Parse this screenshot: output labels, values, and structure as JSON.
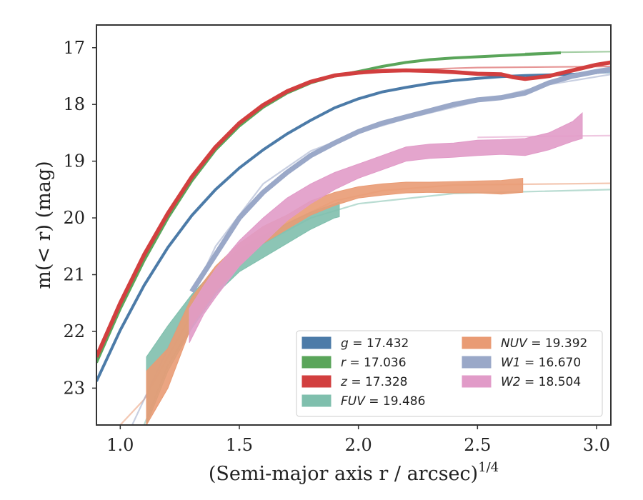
{
  "chart_data": {
    "type": "line",
    "xlabel": "(Semi-major axis r / arcsec)",
    "xlabel_sup": "1/4",
    "ylabel": "m(< r) (mag)",
    "xlim": [
      0.9,
      3.06
    ],
    "ylim": [
      23.65,
      16.6
    ],
    "y_inverted": true,
    "grid": false,
    "legend_placement": "bottom-right",
    "x_ticks": [
      "1.0",
      "1.5",
      "2.0",
      "2.5",
      "3.0"
    ],
    "x_tick_values": [
      1.0,
      1.5,
      2.0,
      2.5,
      3.0
    ],
    "y_ticks": [
      "17",
      "18",
      "19",
      "20",
      "21",
      "22",
      "23"
    ],
    "y_tick_values": [
      17,
      18,
      19,
      20,
      21,
      22,
      23
    ],
    "series": [
      {
        "id": "g",
        "name": "g = 17.432",
        "legend_col": 0,
        "legend_row": 0,
        "color": "#4c7ba8",
        "band_width": 0.05,
        "data": [
          [
            0.9,
            22.88
          ],
          [
            1.0,
            21.98
          ],
          [
            1.1,
            21.19
          ],
          [
            1.2,
            20.52
          ],
          [
            1.3,
            19.96
          ],
          [
            1.4,
            19.5
          ],
          [
            1.5,
            19.12
          ],
          [
            1.6,
            18.8
          ],
          [
            1.7,
            18.52
          ],
          [
            1.8,
            18.28
          ],
          [
            1.9,
            18.06
          ],
          [
            2.0,
            17.9
          ],
          [
            2.1,
            17.78
          ],
          [
            2.2,
            17.7
          ],
          [
            2.3,
            17.63
          ],
          [
            2.4,
            17.58
          ],
          [
            2.5,
            17.54
          ],
          [
            2.6,
            17.51
          ],
          [
            2.7,
            17.49
          ],
          [
            2.8,
            17.48
          ],
          [
            2.9,
            17.47
          ],
          [
            3.0,
            17.44
          ],
          [
            3.06,
            17.4
          ]
        ],
        "model": [
          [
            2.6,
            17.5
          ],
          [
            2.8,
            17.47
          ],
          [
            3.06,
            17.44
          ]
        ]
      },
      {
        "id": "r",
        "name": "r = 17.036",
        "legend_col": 0,
        "legend_row": 1,
        "color": "#5aa55a",
        "band_width": 0.05,
        "data": [
          [
            0.9,
            22.55
          ],
          [
            1.0,
            21.6
          ],
          [
            1.1,
            20.75
          ],
          [
            1.2,
            20.0
          ],
          [
            1.3,
            19.35
          ],
          [
            1.4,
            18.8
          ],
          [
            1.5,
            18.38
          ],
          [
            1.6,
            18.05
          ],
          [
            1.7,
            17.8
          ],
          [
            1.8,
            17.62
          ],
          [
            1.9,
            17.5
          ],
          [
            2.0,
            17.42
          ],
          [
            2.1,
            17.33
          ],
          [
            2.2,
            17.26
          ],
          [
            2.3,
            17.21
          ],
          [
            2.4,
            17.18
          ],
          [
            2.5,
            17.16
          ],
          [
            2.6,
            17.14
          ],
          [
            2.7,
            17.12
          ],
          [
            2.8,
            17.1
          ],
          [
            2.85,
            17.09
          ]
        ],
        "model": [
          [
            2.7,
            17.1
          ],
          [
            2.85,
            17.08
          ],
          [
            3.06,
            17.07
          ]
        ]
      },
      {
        "id": "z",
        "name": "z = 17.328",
        "legend_col": 0,
        "legend_row": 2,
        "color": "#d23f3f",
        "band_width": 0.07,
        "data": [
          [
            0.9,
            22.45
          ],
          [
            1.0,
            21.5
          ],
          [
            1.1,
            20.65
          ],
          [
            1.2,
            19.92
          ],
          [
            1.3,
            19.28
          ],
          [
            1.4,
            18.75
          ],
          [
            1.5,
            18.33
          ],
          [
            1.6,
            18.01
          ],
          [
            1.7,
            17.77
          ],
          [
            1.8,
            17.6
          ],
          [
            1.9,
            17.49
          ],
          [
            2.0,
            17.44
          ],
          [
            2.1,
            17.41
          ],
          [
            2.2,
            17.4
          ],
          [
            2.3,
            17.41
          ],
          [
            2.4,
            17.43
          ],
          [
            2.5,
            17.46
          ],
          [
            2.6,
            17.47
          ],
          [
            2.65,
            17.52
          ],
          [
            2.7,
            17.55
          ],
          [
            2.8,
            17.5
          ],
          [
            2.9,
            17.4
          ],
          [
            3.0,
            17.3
          ],
          [
            3.06,
            17.26
          ]
        ],
        "model": [
          [
            1.9,
            17.5
          ],
          [
            2.1,
            17.4
          ],
          [
            2.5,
            17.35
          ],
          [
            3.06,
            17.33
          ]
        ]
      },
      {
        "id": "fuv",
        "name": "FUV = 19.486",
        "legend_col": 0,
        "legend_row": 3,
        "color": "#7fbfad",
        "band_width": 0.0,
        "band": [
          [
            1.11,
            22.45,
            23.65
          ],
          [
            1.2,
            21.9,
            22.7
          ],
          [
            1.3,
            21.35,
            21.95
          ],
          [
            1.4,
            20.9,
            21.35
          ],
          [
            1.5,
            20.55,
            20.95
          ],
          [
            1.6,
            20.3,
            20.7
          ],
          [
            1.7,
            20.1,
            20.45
          ],
          [
            1.8,
            19.9,
            20.2
          ],
          [
            1.9,
            19.75,
            20.0
          ],
          [
            1.92,
            19.72,
            19.98
          ]
        ],
        "model": [
          [
            1.1,
            23.65
          ],
          [
            1.2,
            22.6
          ],
          [
            1.4,
            21.2
          ],
          [
            1.6,
            20.45
          ],
          [
            1.8,
            20.0
          ],
          [
            2.0,
            19.75
          ],
          [
            2.4,
            19.57
          ],
          [
            3.06,
            19.5
          ]
        ]
      },
      {
        "id": "nuv",
        "name": "NUV = 19.392",
        "legend_col": 1,
        "legend_row": 0,
        "color": "#e99b74",
        "band_width": 0.0,
        "band": [
          [
            1.11,
            22.7,
            23.65
          ],
          [
            1.2,
            22.3,
            23.0
          ],
          [
            1.3,
            21.4,
            21.9
          ],
          [
            1.4,
            20.85,
            21.3
          ],
          [
            1.5,
            20.45,
            20.85
          ],
          [
            1.6,
            20.15,
            20.45
          ],
          [
            1.7,
            19.95,
            20.2
          ],
          [
            1.8,
            19.7,
            19.95
          ],
          [
            1.9,
            19.55,
            19.78
          ],
          [
            2.0,
            19.45,
            19.65
          ],
          [
            2.1,
            19.4,
            19.6
          ],
          [
            2.2,
            19.37,
            19.56
          ],
          [
            2.3,
            19.37,
            19.55
          ],
          [
            2.4,
            19.36,
            19.56
          ],
          [
            2.5,
            19.35,
            19.56
          ],
          [
            2.6,
            19.34,
            19.58
          ],
          [
            2.69,
            19.3,
            19.55
          ]
        ],
        "model": [
          [
            1.0,
            23.65
          ],
          [
            1.1,
            23.2
          ],
          [
            1.3,
            21.7
          ],
          [
            1.5,
            20.7
          ],
          [
            1.7,
            20.1
          ],
          [
            1.9,
            19.7
          ],
          [
            2.1,
            19.52
          ],
          [
            2.4,
            19.42
          ],
          [
            3.06,
            19.39
          ]
        ]
      },
      {
        "id": "w1",
        "name": "W1 = 16.670",
        "legend_col": 1,
        "legend_row": 1,
        "color": "#9aa8c8",
        "band_width": 0.09,
        "data": [
          [
            1.3,
            21.3
          ],
          [
            1.4,
            20.65
          ],
          [
            1.5,
            20.0
          ],
          [
            1.6,
            19.55
          ],
          [
            1.7,
            19.2
          ],
          [
            1.8,
            18.9
          ],
          [
            1.9,
            18.68
          ],
          [
            2.0,
            18.48
          ],
          [
            2.1,
            18.33
          ],
          [
            2.2,
            18.22
          ],
          [
            2.3,
            18.11
          ],
          [
            2.4,
            18.0
          ],
          [
            2.5,
            17.92
          ],
          [
            2.6,
            17.88
          ],
          [
            2.7,
            17.8
          ],
          [
            2.8,
            17.62
          ],
          [
            2.9,
            17.5
          ],
          [
            3.0,
            17.42
          ],
          [
            3.06,
            17.38
          ]
        ],
        "model": [
          [
            1.05,
            23.65
          ],
          [
            1.2,
            22.3
          ],
          [
            1.4,
            20.5
          ],
          [
            1.6,
            19.4
          ],
          [
            1.8,
            18.82
          ],
          [
            2.0,
            18.5
          ],
          [
            2.2,
            18.25
          ],
          [
            2.4,
            18.05
          ],
          [
            2.6,
            17.85
          ],
          [
            2.8,
            17.65
          ],
          [
            3.06,
            17.47
          ]
        ]
      },
      {
        "id": "w2",
        "name": "W2 = 18.504",
        "legend_col": 1,
        "legend_row": 2,
        "color": "#e19bc8",
        "band_width": 0.0,
        "band": [
          [
            1.29,
            21.6,
            22.2
          ],
          [
            1.35,
            21.2,
            21.7
          ],
          [
            1.4,
            20.9,
            21.4
          ],
          [
            1.5,
            20.4,
            20.85
          ],
          [
            1.6,
            20.0,
            20.45
          ],
          [
            1.7,
            19.65,
            20.05
          ],
          [
            1.8,
            19.4,
            19.75
          ],
          [
            1.9,
            19.2,
            19.5
          ],
          [
            2.0,
            19.05,
            19.3
          ],
          [
            2.1,
            18.9,
            19.15
          ],
          [
            2.2,
            18.75,
            19.0
          ],
          [
            2.3,
            18.7,
            18.95
          ],
          [
            2.4,
            18.68,
            18.93
          ],
          [
            2.5,
            18.63,
            18.9
          ],
          [
            2.6,
            18.62,
            18.88
          ],
          [
            2.7,
            18.6,
            18.9
          ],
          [
            2.8,
            18.5,
            18.8
          ],
          [
            2.9,
            18.3,
            18.65
          ],
          [
            2.94,
            18.15,
            18.6
          ]
        ],
        "model": [
          [
            2.5,
            18.58
          ],
          [
            2.8,
            18.56
          ],
          [
            3.06,
            18.55
          ]
        ]
      }
    ]
  }
}
